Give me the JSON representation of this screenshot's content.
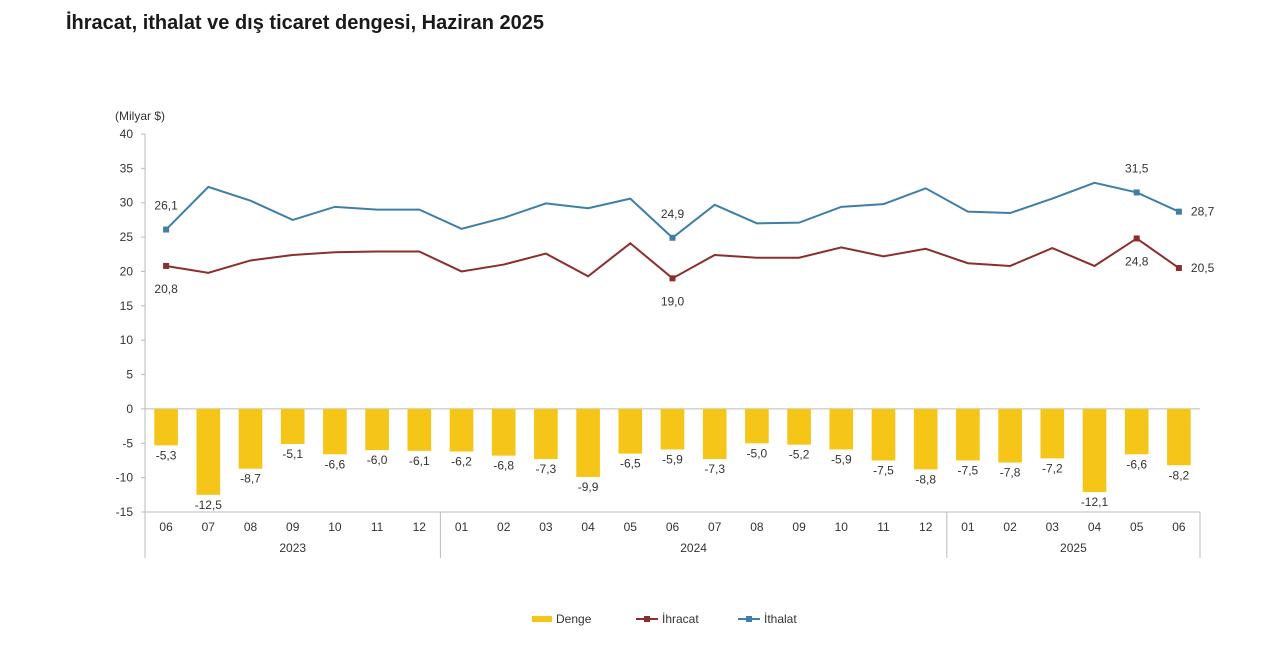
{
  "chart_data": {
    "type": "bar+line",
    "title": "İhracat, ithalat ve dış ticaret dengesi, Haziran 2025",
    "ylabel": "(Milyar $)",
    "ylim": [
      -15,
      40
    ],
    "yticks": [
      40,
      35,
      30,
      25,
      20,
      15,
      10,
      5,
      0,
      -5,
      -10,
      -15
    ],
    "categories": [
      "06",
      "07",
      "08",
      "09",
      "10",
      "11",
      "12",
      "01",
      "02",
      "03",
      "04",
      "05",
      "06",
      "07",
      "08",
      "09",
      "10",
      "11",
      "12",
      "01",
      "02",
      "03",
      "04",
      "05",
      "06"
    ],
    "years": [
      {
        "label": "2023",
        "start": 0,
        "end": 6
      },
      {
        "label": "2024",
        "start": 7,
        "end": 18
      },
      {
        "label": "2025",
        "start": 19,
        "end": 24
      }
    ],
    "series": [
      {
        "name": "Denge",
        "type": "bar",
        "color": "#f5c518",
        "values": [
          -5.3,
          -12.5,
          -8.7,
          -5.1,
          -6.6,
          -6.0,
          -6.1,
          -6.2,
          -6.8,
          -7.3,
          -9.9,
          -6.5,
          -5.9,
          -7.3,
          -5.0,
          -5.2,
          -5.9,
          -7.5,
          -8.8,
          -7.5,
          -7.8,
          -7.2,
          -12.1,
          -6.6,
          -8.2
        ],
        "labels": [
          "-5,3",
          "-12,5",
          "-8,7",
          "-5,1",
          "-6,6",
          "-6,0",
          "-6,1",
          "-6,2",
          "-6,8",
          "-7,3",
          "-9,9",
          "-6,5",
          "-5,9",
          "-7,3",
          "-5,0",
          "-5,2",
          "-5,9",
          "-7,5",
          "-8,8",
          "-7,5",
          "-7,8",
          "-7,2",
          "-12,1",
          "-6,6",
          "-8,2"
        ]
      },
      {
        "name": "İhracat",
        "type": "line",
        "color": "#8b2e2e",
        "values": [
          20.8,
          19.8,
          21.6,
          22.4,
          22.8,
          22.9,
          22.9,
          20.0,
          21.0,
          22.6,
          19.3,
          24.1,
          19.0,
          22.4,
          22.0,
          22.0,
          23.5,
          22.2,
          23.3,
          21.2,
          20.8,
          23.4,
          20.8,
          24.8,
          20.5
        ],
        "labels": [
          {
            "i": 0,
            "text": "20,8",
            "pos": "below"
          },
          {
            "i": 12,
            "text": "19,0",
            "pos": "below"
          },
          {
            "i": 23,
            "text": "24,8",
            "pos": "below"
          },
          {
            "i": 24,
            "text": "20,5",
            "pos": "right"
          }
        ]
      },
      {
        "name": "İthalat",
        "type": "line",
        "color": "#3f7ea6",
        "values": [
          26.1,
          32.3,
          30.3,
          27.5,
          29.4,
          29.0,
          29.0,
          26.2,
          27.8,
          29.9,
          29.2,
          30.6,
          24.9,
          29.7,
          27.0,
          27.1,
          29.4,
          29.8,
          32.1,
          28.7,
          28.5,
          30.6,
          32.9,
          31.5,
          28.7
        ],
        "labels": [
          {
            "i": 0,
            "text": "26,1",
            "pos": "above"
          },
          {
            "i": 12,
            "text": "24,9",
            "pos": "above"
          },
          {
            "i": 23,
            "text": "31,5",
            "pos": "above"
          },
          {
            "i": 24,
            "text": "28,7",
            "pos": "right"
          }
        ]
      }
    ],
    "marker_indices": [
      0,
      12,
      23,
      24
    ],
    "legend": [
      "Denge",
      "İhracat",
      "İthalat"
    ],
    "legend_position": "bottom",
    "grid": false
  }
}
